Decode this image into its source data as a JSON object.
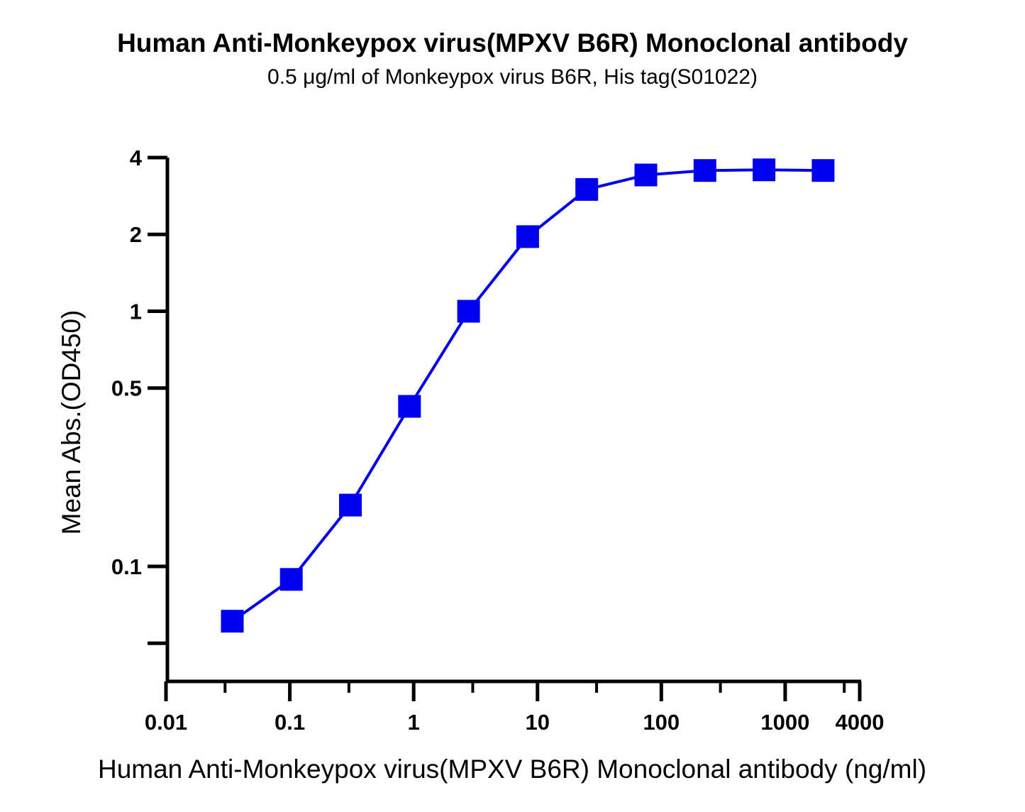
{
  "chart_data": {
    "type": "line",
    "title": "Human Anti-Monkeypox virus(MPXV B6R) Monoclonal antibody",
    "subtitle": "0.5 μg/ml of Monkeypox virus B6R, His tag(S01022)",
    "xlabel": "Human Anti-Monkeypox virus(MPXV B6R) Monoclonal antibody (ng/ml)",
    "ylabel": "Mean Abs.(OD450)",
    "x_scale": "log",
    "y_scale": "log",
    "xlim": [
      0.01,
      4000
    ],
    "ylim": [
      0.035,
      4
    ],
    "x_tick_labels": [
      "0.01",
      "0.1",
      "1",
      "10",
      "100",
      "1000",
      "4000"
    ],
    "x_tick_values": [
      0.01,
      0.1,
      1,
      10,
      100,
      1000,
      4000
    ],
    "y_tick_labels": [
      "4",
      "2",
      "1",
      "0.5",
      "0.1"
    ],
    "y_tick_values": [
      4,
      2,
      1,
      0.5,
      0.1
    ],
    "y_unlabeled_ticks": [
      0.05
    ],
    "grid": false,
    "marker": "square",
    "color": "#0000ee",
    "series": [
      {
        "x": [
          0.0343,
          0.1029,
          0.3086,
          0.926,
          2.778,
          8.333,
          25,
          75,
          225,
          675,
          2025
        ],
        "y": [
          0.061,
          0.089,
          0.174,
          0.424,
          1.0,
          1.96,
          3.0,
          3.42,
          3.56,
          3.58,
          3.56
        ]
      }
    ]
  }
}
